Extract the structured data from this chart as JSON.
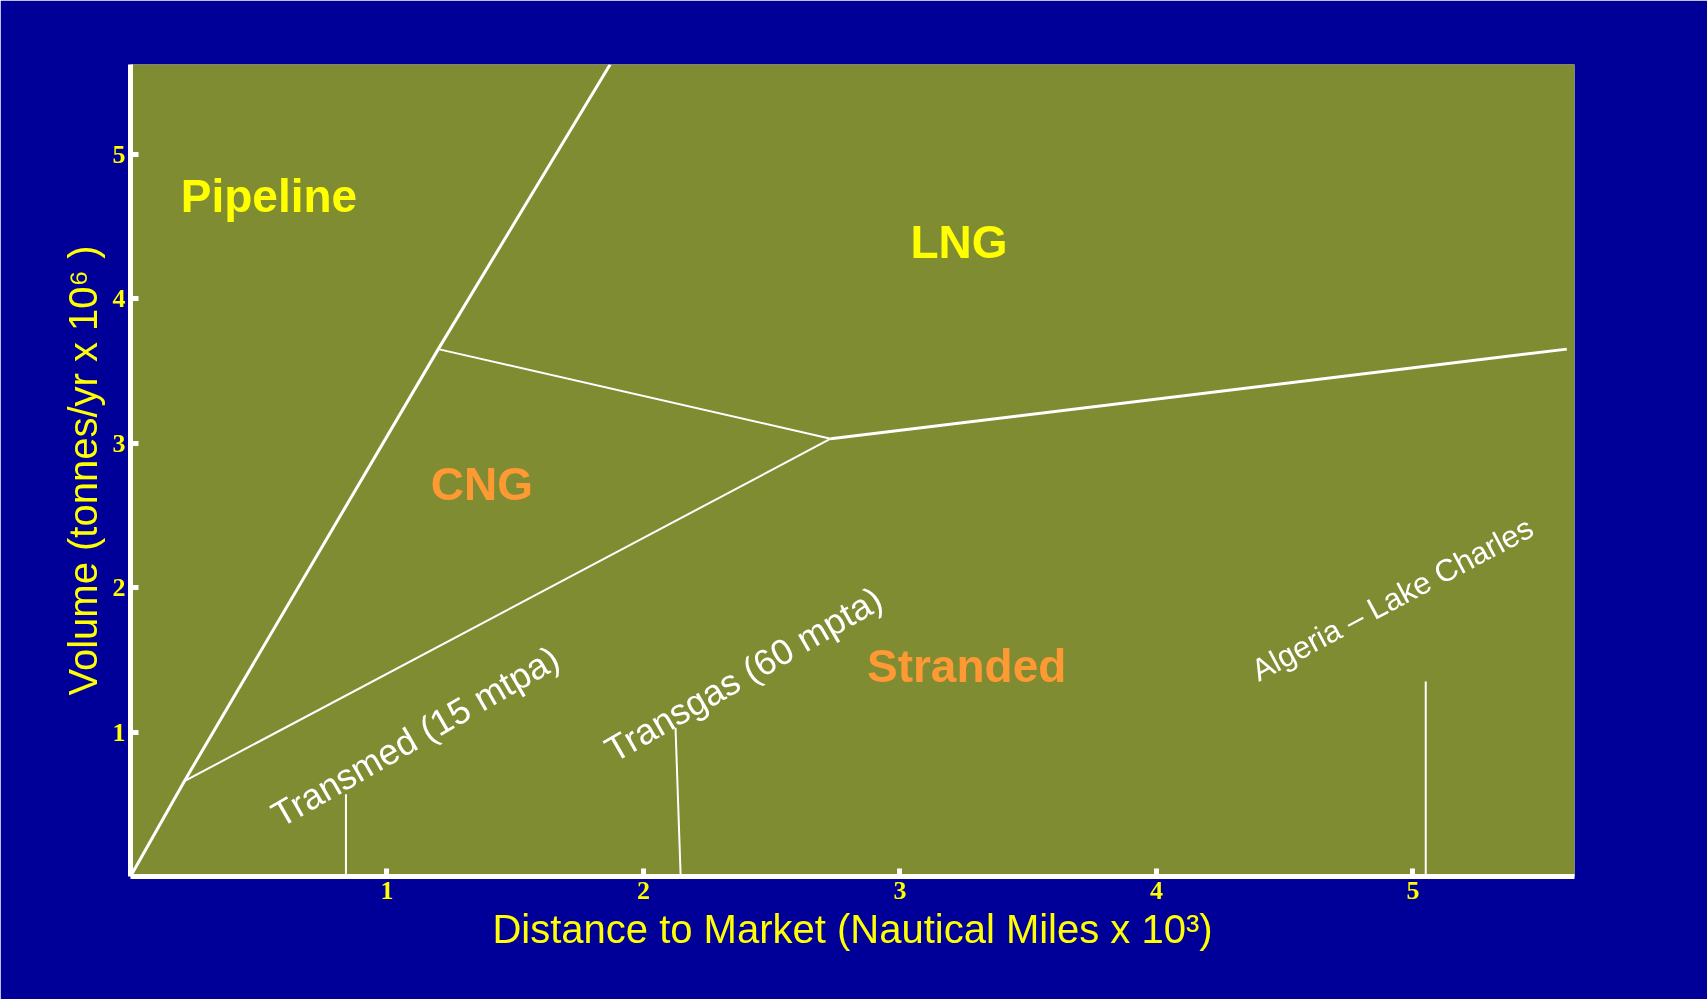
{
  "chart_data": {
    "type": "line",
    "xlabel": "Distance to Market (Nautical Miles x 10³)",
    "ylabel": "Volume (tonnes/yr x 10⁶ )",
    "xlim": [
      0,
      5.63
    ],
    "ylim": [
      0,
      5.62
    ],
    "xticks": [
      1,
      2,
      3,
      4,
      5
    ],
    "yticks": [
      1,
      2,
      3,
      4,
      5
    ],
    "grid": false,
    "marker": "none",
    "line_style": "solid",
    "series": [
      {
        "color": "#ffffff",
        "x": [
          0,
          0.21,
          1.2,
          1.87
        ],
        "values": [
          0,
          0.66,
          3.65,
          5.62
        ]
      },
      {
        "color": "#ffffff",
        "x": [
          0.21,
          2.73
        ],
        "values": [
          0.66,
          3.03
        ]
      },
      {
        "color": "#ffffff",
        "x": [
          1.2,
          2.73
        ],
        "values": [
          3.65,
          3.03
        ]
      },
      {
        "color": "#ffffff",
        "x": [
          2.73,
          5.6
        ],
        "values": [
          3.03,
          3.65
        ]
      },
      {
        "color": "#ffffff",
        "x": [
          0.84,
          0.84
        ],
        "values": [
          0.57,
          0
        ]
      },
      {
        "color": "#ffffff",
        "x": [
          2.125,
          2.145
        ],
        "values": [
          1.03,
          0
        ]
      },
      {
        "color": "#ffffff",
        "x": [
          5.05,
          5.05
        ],
        "values": [
          1.35,
          0
        ]
      }
    ],
    "annotations": [
      "Pipeline",
      "LNG",
      "CNG",
      "Stranded",
      "Transmed (15 mtpa)",
      "Transgas (60 mpta)",
      "Algeria – Lake Charles"
    ]
  }
}
